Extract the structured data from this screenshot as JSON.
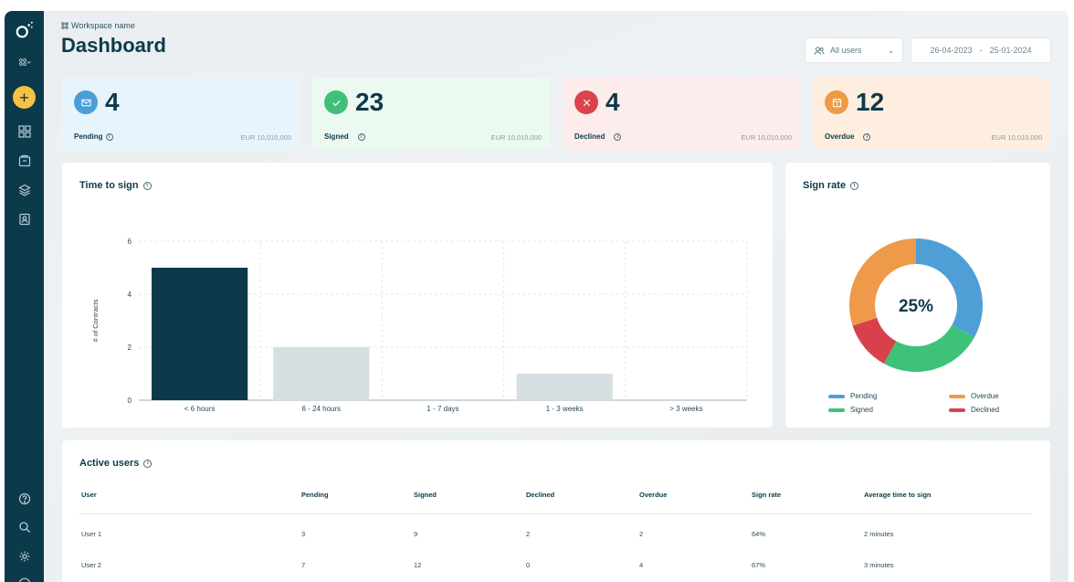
{
  "workspace_name": "Workspace name",
  "page_title": "Dashboard",
  "filters": {
    "users": "All users",
    "date_from": "26-04-2023",
    "date_sep": "-",
    "date_to": "25-01-2024"
  },
  "stats": [
    {
      "label": "Pending",
      "count": "4",
      "amount": "EUR 10,010,000",
      "bg": "#e8f4fb",
      "color": "#4a9ed8",
      "icon": "mail-icon"
    },
    {
      "label": "Signed",
      "count": "23",
      "amount": "EUR 10,010,000",
      "bg": "#ecf9f0",
      "color": "#3fbf78",
      "icon": "check-icon"
    },
    {
      "label": "Declined",
      "count": "4",
      "amount": "EUR 10,010,000",
      "bg": "#fdecec",
      "color": "#d9434e",
      "icon": "x-icon"
    },
    {
      "label": "Overdue",
      "count": "12",
      "amount": "EUR 10,010,000",
      "bg": "#fdeee0",
      "color": "#ef9a45",
      "icon": "calendar-icon"
    }
  ],
  "time_to_sign": {
    "title": "Time to sign"
  },
  "sign_rate": {
    "title": "Sign rate",
    "center": "25%",
    "legend": [
      {
        "name": "Pending",
        "color": "#4f9fd6"
      },
      {
        "name": "Overdue",
        "color": "#ef9a4a"
      },
      {
        "name": "Signed",
        "color": "#3ec27a"
      },
      {
        "name": "Declined",
        "color": "#d8414c"
      }
    ]
  },
  "chart_data": [
    {
      "type": "bar",
      "title": "Time to sign",
      "xlabel": "",
      "ylabel": "# of Contracts",
      "categories": [
        "< 6 hours",
        "6 - 24 hours",
        "1 - 7 days",
        "1 - 3 weeks",
        "> 3 weeks"
      ],
      "values": [
        5,
        2,
        0,
        1,
        0
      ],
      "colors": [
        "#0d3a4b",
        "#d6dfe1",
        "#d6dfe1",
        "#d6dfe1",
        "#d6dfe1"
      ],
      "ylim": [
        0,
        6
      ],
      "yticks": [
        0,
        2,
        4,
        6
      ],
      "grid": true
    },
    {
      "type": "pie",
      "title": "Sign rate",
      "categories": [
        "Pending",
        "Signed",
        "Declined",
        "Overdue"
      ],
      "values": [
        33,
        25,
        12,
        30
      ],
      "colors": [
        "#4f9fd6",
        "#3ec27a",
        "#d8414c",
        "#ef9a4a"
      ],
      "center_label": "25%",
      "legend": "bottom"
    }
  ],
  "active_users": {
    "title": "Active users",
    "columns": [
      "User",
      "Pending",
      "Signed",
      "Declined",
      "Overdue",
      "Sign rate",
      "Average time to sign"
    ],
    "rows": [
      [
        "User 1",
        "3",
        "9",
        "2",
        "2",
        "64%",
        "2 minutes"
      ],
      [
        "User 2",
        "7",
        "12",
        "0",
        "4",
        "67%",
        "3 minutes"
      ]
    ]
  }
}
